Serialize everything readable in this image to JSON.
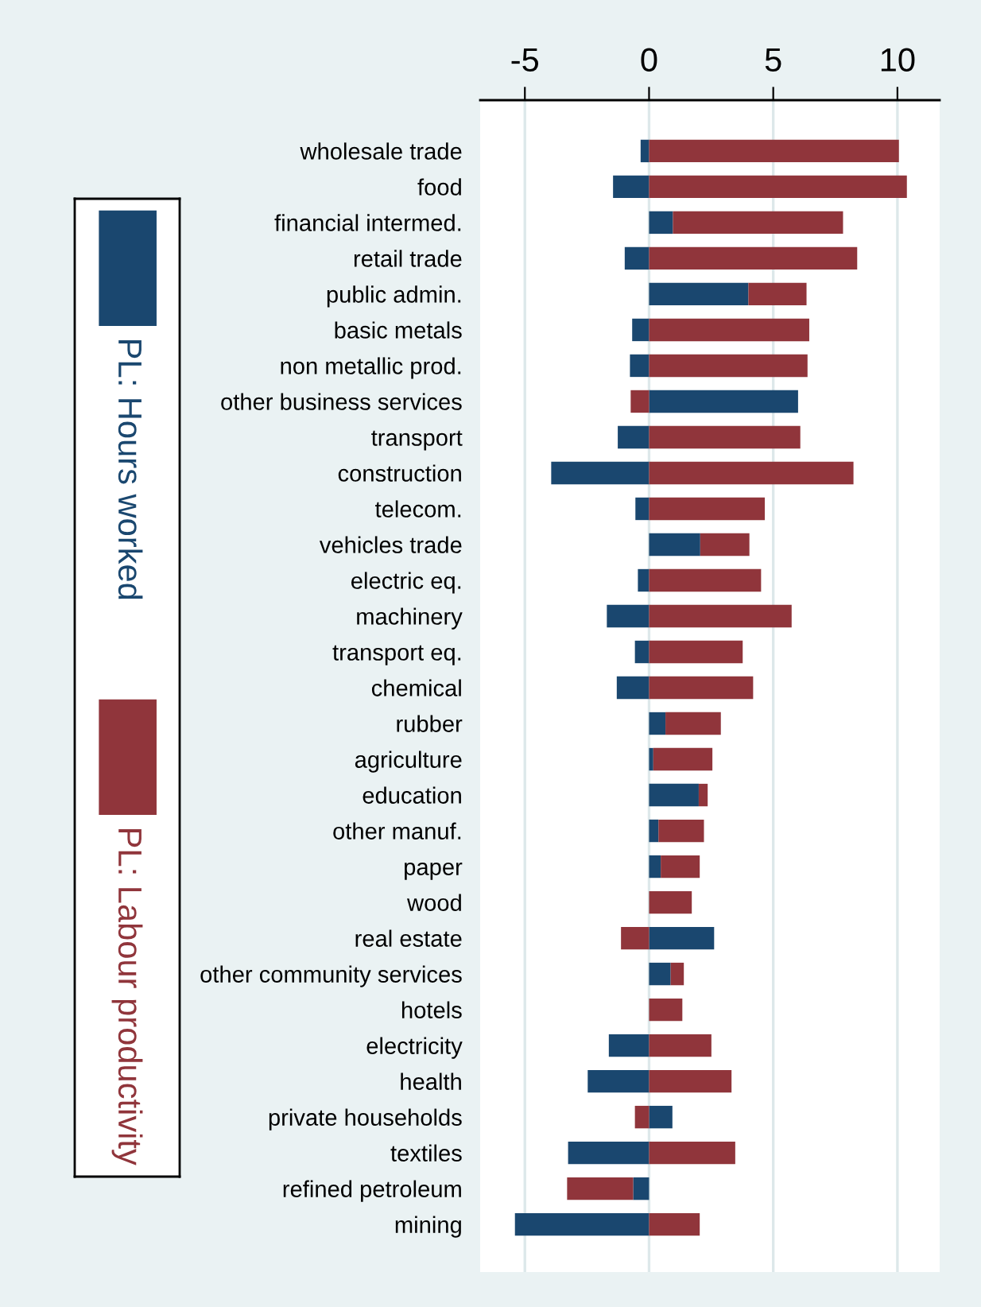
{
  "chart_data": {
    "type": "bar",
    "orientation": "horizontal",
    "stacked": true,
    "categories": [
      "wholesale trade",
      "food",
      "financial intermed.",
      "retail trade",
      "public admin.",
      "basic metals",
      "non metallic prod.",
      "other business services",
      "transport",
      "construction",
      "telecom.",
      "vehicles trade",
      "electric eq.",
      "machinery",
      "transport eq.",
      "chemical",
      "rubber",
      "agriculture",
      "education",
      "other manuf.",
      "paper",
      "wood",
      "real estate",
      "other community services",
      "hotels",
      "electricity",
      "health",
      "private households",
      "textiles",
      "refined petroleum",
      "mining"
    ],
    "series": [
      {
        "name": "PL: Hours worked",
        "color": "#1a476f",
        "values": [
          -0.34,
          -1.45,
          0.96,
          -0.98,
          4.0,
          -0.68,
          -0.77,
          6.0,
          -1.26,
          -3.94,
          -0.55,
          2.06,
          -0.45,
          -1.7,
          -0.57,
          -1.3,
          0.66,
          0.17,
          2.0,
          0.38,
          0.47,
          0,
          2.62,
          0.87,
          0,
          -1.62,
          -2.47,
          0.94,
          -3.26,
          -0.64,
          -5.4
        ]
      },
      {
        "name": "PL: Labour productivity",
        "color": "#90353b",
        "values": [
          10.06,
          10.38,
          6.85,
          8.38,
          2.34,
          6.45,
          6.38,
          -0.74,
          6.09,
          8.23,
          4.66,
          1.98,
          4.51,
          5.74,
          3.77,
          4.19,
          2.23,
          2.38,
          0.36,
          1.83,
          1.57,
          1.72,
          -1.13,
          0.53,
          1.34,
          2.51,
          3.32,
          -0.57,
          3.47,
          -2.66,
          2.04
        ]
      }
    ],
    "xlim": [
      -6.8,
      11.7
    ],
    "xticks": [
      -5,
      0,
      5,
      10
    ],
    "grid": "x",
    "legend": "left"
  }
}
